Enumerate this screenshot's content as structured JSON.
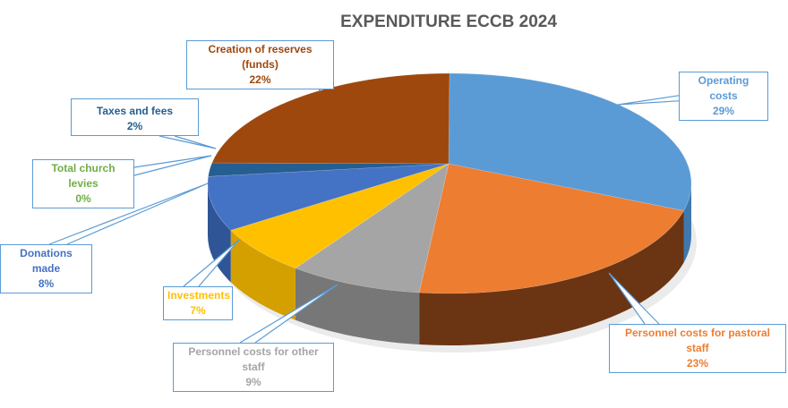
{
  "chart_data": {
    "type": "pie",
    "title": "EXPENDITURE ECCB 2024",
    "style": "3d-pie",
    "slices": [
      {
        "label": "Operating costs",
        "value": 29,
        "value_label": "29%",
        "color": "#5B9BD5",
        "side": "#3f78ad"
      },
      {
        "label": "Personnel costs for pastoral staff",
        "value": 23,
        "value_label": "23%",
        "color": "#ED7D31",
        "side": "#6b3514"
      },
      {
        "label": "Personnel costs for other staff",
        "value": 9,
        "value_label": "9%",
        "color": "#A5A5A5",
        "side": "#777777"
      },
      {
        "label": "Investments",
        "value": 7,
        "value_label": "7%",
        "color": "#FFC000",
        "side": "#d4a000"
      },
      {
        "label": "Donations made",
        "value": 8,
        "value_label": "8%",
        "color": "#4472C4",
        "side": "#2f5597"
      },
      {
        "label": "Total church levies",
        "value": 0,
        "value_label": "0%",
        "color": "#70AD47",
        "side": "#4f7f30"
      },
      {
        "label": "Taxes and fees",
        "value": 2,
        "value_label": "2%",
        "color": "#255E91",
        "side": "#1b456b"
      },
      {
        "label": "Creation of reserves (funds)",
        "value": 22,
        "value_label": "22%",
        "color": "#9E480E",
        "side": "#6e320a"
      }
    ]
  }
}
